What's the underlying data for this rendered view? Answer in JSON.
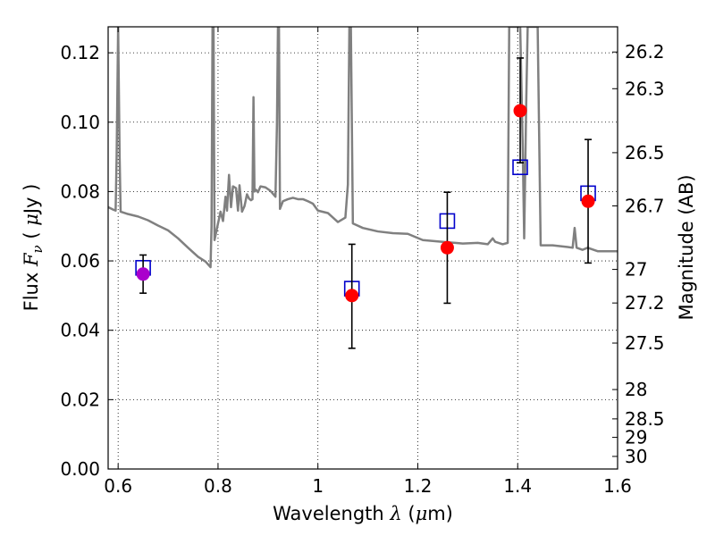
{
  "chart_data": {
    "type": "scatter",
    "xlabel": {
      "prefix": "Wavelength  ",
      "var": "λ",
      "suffix": " (",
      "mu": "μ",
      "unit": "m)"
    },
    "ylabel": {
      "prefix": "Flux  ",
      "var": "F",
      "sub": "ν",
      "mid": "  ( ",
      "mu": "μ",
      "unit": "Jy )"
    },
    "y2label": "Magnitude (AB)",
    "xlim": [
      0.58,
      1.6
    ],
    "ylim": [
      0.0,
      0.1275
    ],
    "xticks": [
      {
        "value": 0.6,
        "label": "0.6"
      },
      {
        "value": 0.8,
        "label": "0.8"
      },
      {
        "value": 1.0,
        "label": "1"
      },
      {
        "value": 1.2,
        "label": "1.2"
      },
      {
        "value": 1.4,
        "label": "1.4"
      },
      {
        "value": 1.6,
        "label": "1.6"
      }
    ],
    "yticks": [
      {
        "value": 0.0,
        "label": "0.00"
      },
      {
        "value": 0.02,
        "label": "0.02"
      },
      {
        "value": 0.04,
        "label": "0.04"
      },
      {
        "value": 0.06,
        "label": "0.06"
      },
      {
        "value": 0.08,
        "label": "0.08"
      },
      {
        "value": 0.1,
        "label": "0.10"
      },
      {
        "value": 0.12,
        "label": "0.12"
      }
    ],
    "y2ticks": [
      {
        "mag": 26.2,
        "label": "26.2"
      },
      {
        "mag": 26.3,
        "label": "26.3"
      },
      {
        "mag": 26.5,
        "label": "26.5"
      },
      {
        "mag": 26.7,
        "label": "26.7"
      },
      {
        "mag": 27.0,
        "label": "27"
      },
      {
        "mag": 27.2,
        "label": "27.2"
      },
      {
        "mag": 27.5,
        "label": "27.5"
      },
      {
        "mag": 28.0,
        "label": "28"
      },
      {
        "mag": 28.5,
        "label": "28.5"
      },
      {
        "mag": 29.0,
        "label": "29"
      },
      {
        "mag": 30.0,
        "label": "30"
      }
    ],
    "grid": true,
    "series": [
      {
        "kind": "line",
        "color": "#808080",
        "points": [
          [
            0.58,
            0.0755
          ],
          [
            0.59,
            0.0748
          ],
          [
            0.595,
            0.0745
          ],
          [
            0.597,
            0.09
          ],
          [
            0.599,
            0.115
          ],
          [
            0.6,
            0.1275
          ],
          [
            0.601,
            0.115
          ],
          [
            0.603,
            0.09
          ],
          [
            0.605,
            0.0742
          ],
          [
            0.62,
            0.0735
          ],
          [
            0.64,
            0.0728
          ],
          [
            0.66,
            0.0717
          ],
          [
            0.68,
            0.0702
          ],
          [
            0.7,
            0.0688
          ],
          [
            0.72,
            0.0665
          ],
          [
            0.74,
            0.0638
          ],
          [
            0.76,
            0.0612
          ],
          [
            0.775,
            0.0598
          ],
          [
            0.785,
            0.0582
          ],
          [
            0.787,
            0.07
          ],
          [
            0.789,
            0.1275
          ],
          [
            0.791,
            0.1275
          ],
          [
            0.793,
            0.066
          ],
          [
            0.8,
            0.0708
          ],
          [
            0.805,
            0.0742
          ],
          [
            0.81,
            0.0715
          ],
          [
            0.815,
            0.0785
          ],
          [
            0.818,
            0.0745
          ],
          [
            0.822,
            0.0848
          ],
          [
            0.826,
            0.0755
          ],
          [
            0.83,
            0.0815
          ],
          [
            0.836,
            0.081
          ],
          [
            0.84,
            0.0745
          ],
          [
            0.843,
            0.0818
          ],
          [
            0.848,
            0.0742
          ],
          [
            0.853,
            0.0758
          ],
          [
            0.858,
            0.0792
          ],
          [
            0.862,
            0.078
          ],
          [
            0.866,
            0.0775
          ],
          [
            0.869,
            0.0778
          ],
          [
            0.871,
            0.1072
          ],
          [
            0.873,
            0.08
          ],
          [
            0.876,
            0.0805
          ],
          [
            0.88,
            0.0798
          ],
          [
            0.885,
            0.0815
          ],
          [
            0.895,
            0.0812
          ],
          [
            0.905,
            0.0802
          ],
          [
            0.915,
            0.0785
          ],
          [
            0.918,
            0.0995
          ],
          [
            0.92,
            0.1275
          ],
          [
            0.922,
            0.1275
          ],
          [
            0.924,
            0.075
          ],
          [
            0.93,
            0.0772
          ],
          [
            0.94,
            0.0778
          ],
          [
            0.95,
            0.0782
          ],
          [
            0.96,
            0.0778
          ],
          [
            0.97,
            0.0778
          ],
          [
            0.98,
            0.0772
          ],
          [
            0.99,
            0.0765
          ],
          [
            1.0,
            0.0745
          ],
          [
            1.02,
            0.0738
          ],
          [
            1.04,
            0.0712
          ],
          [
            1.055,
            0.0725
          ],
          [
            1.06,
            0.082
          ],
          [
            1.063,
            0.1275
          ],
          [
            1.066,
            0.1275
          ],
          [
            1.07,
            0.0708
          ],
          [
            1.09,
            0.0695
          ],
          [
            1.12,
            0.0685
          ],
          [
            1.15,
            0.068
          ],
          [
            1.18,
            0.0678
          ],
          [
            1.21,
            0.066
          ],
          [
            1.25,
            0.0655
          ],
          [
            1.29,
            0.065
          ],
          [
            1.32,
            0.0652
          ],
          [
            1.34,
            0.0648
          ],
          [
            1.35,
            0.0665
          ],
          [
            1.355,
            0.0655
          ],
          [
            1.37,
            0.0648
          ],
          [
            1.38,
            0.0652
          ],
          [
            1.383,
            0.1275
          ],
          [
            1.398,
            0.1275
          ],
          [
            1.401,
            0.1275
          ],
          [
            1.405,
            0.1275
          ],
          [
            1.41,
            0.0935
          ],
          [
            1.413,
            0.0665
          ],
          [
            1.417,
            0.105
          ],
          [
            1.42,
            0.1275
          ],
          [
            1.44,
            0.1275
          ],
          [
            1.446,
            0.0645
          ],
          [
            1.47,
            0.0645
          ],
          [
            1.5,
            0.064
          ],
          [
            1.51,
            0.0638
          ],
          [
            1.514,
            0.0695
          ],
          [
            1.518,
            0.0638
          ],
          [
            1.53,
            0.0632
          ],
          [
            1.54,
            0.0638
          ],
          [
            1.56,
            0.0628
          ],
          [
            1.58,
            0.0628
          ],
          [
            1.6,
            0.0628
          ]
        ]
      },
      {
        "kind": "markers",
        "marker": "square-open",
        "color": "#0000cc",
        "x": [
          0.65,
          1.068,
          1.259,
          1.405,
          1.541
        ],
        "y": [
          0.058,
          0.052,
          0.0715,
          0.087,
          0.0795
        ]
      },
      {
        "kind": "errorbar",
        "marker": "circle",
        "color": "#ff0000",
        "ecolor": "#000000",
        "x": [
          1.068,
          1.259,
          1.405,
          1.541
        ],
        "y": [
          0.05,
          0.0638,
          0.1033,
          0.0772
        ],
        "yerr_low": [
          0.0152,
          0.016,
          0.015,
          0.0178
        ],
        "yerr_high": [
          0.0148,
          0.016,
          0.0152,
          0.0178
        ]
      },
      {
        "kind": "errorbar",
        "marker": "circle",
        "color": "#aa00cc",
        "ecolor": "#000000",
        "x": [
          0.65
        ],
        "y": [
          0.0562
        ],
        "yerr_low": [
          0.0055
        ],
        "yerr_high": [
          0.0055
        ]
      }
    ]
  }
}
